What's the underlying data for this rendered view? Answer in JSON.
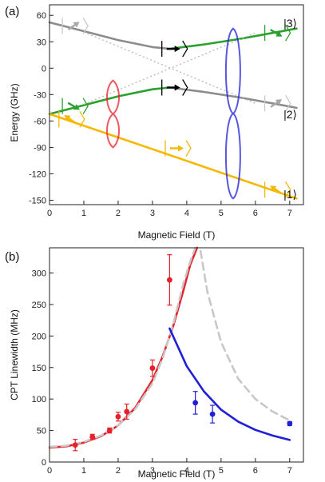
{
  "colors": {
    "red": "#e8202a",
    "green": "#2ca02c",
    "gray": "#8c8c8c",
    "lightgray": "#c8c8c8",
    "yellow": "#f5b800",
    "blue": "#1f1fd6",
    "black": "#000000"
  },
  "chart_data": [
    {
      "type": "line",
      "panel_label": "(a)",
      "xlabel": "Magnetic Field (T)",
      "ylabel": "Energy (GHz)",
      "xlim": [
        0,
        7.4
      ],
      "ylim": [
        -155,
        72
      ],
      "xticks": [
        "0",
        "1",
        "2",
        "3",
        "4",
        "5",
        "6",
        "7"
      ],
      "yticks": [
        "60",
        "30",
        "0",
        "-30",
        "-60",
        "-90",
        "-120",
        "-150"
      ],
      "state_labels": [
        "|3⟩",
        "|2⟩",
        "|1⟩"
      ],
      "series": [
        {
          "color": "gray",
          "x": [
            0,
            1,
            2,
            3,
            3.5
          ],
          "y": [
            52,
            42,
            32,
            24,
            22
          ]
        },
        {
          "color": "green",
          "x": [
            3.5,
            4.5,
            5.5,
            6.5,
            7.2
          ],
          "y": [
            22,
            27,
            33,
            40,
            45
          ]
        },
        {
          "color": "green",
          "x": [
            0,
            1,
            2,
            3,
            3.5
          ],
          "y": [
            -52,
            -42,
            -32,
            -24,
            -22
          ]
        },
        {
          "color": "gray",
          "x": [
            3.5,
            4.5,
            5.5,
            6.5,
            7.2
          ],
          "y": [
            -22,
            -27,
            -33,
            -40,
            -45
          ]
        },
        {
          "color": "yellow",
          "x": [
            0,
            7.2
          ],
          "y": [
            -52,
            -148
          ]
        }
      ]
    },
    {
      "type": "line",
      "panel_label": "(b)",
      "xlabel": "Magnetic Field (T)",
      "ylabel": "CPT Linewidth (MHz)",
      "xlim": [
        0,
        7.4
      ],
      "ylim": [
        0,
        340
      ],
      "xticks": [
        "0",
        "1",
        "2",
        "3",
        "4",
        "5",
        "6",
        "7"
      ],
      "yticks": [
        "0",
        "50",
        "100",
        "150",
        "200",
        "250",
        "300"
      ],
      "series": [
        {
          "color": "red",
          "style": "solid",
          "x": [
            0,
            0.5,
            1,
            1.5,
            2,
            2.5,
            3,
            3.3,
            3.6,
            3.9,
            4.1,
            4.3
          ],
          "y": [
            23,
            25,
            31,
            41,
            58,
            86,
            130,
            168,
            215,
            272,
            313,
            340
          ]
        },
        {
          "color": "lightgray",
          "style": "dashed",
          "x": [
            0,
            0.5,
            1,
            1.5,
            2,
            2.5,
            3,
            3.3,
            3.6,
            3.9,
            4.1,
            4.25
          ],
          "y": [
            24,
            26,
            32,
            42,
            58,
            84,
            125,
            165,
            218,
            283,
            318,
            340
          ]
        },
        {
          "color": "lightgray",
          "style": "dashed",
          "x": [
            4.4,
            4.6,
            5,
            5.5,
            6,
            6.5,
            7
          ],
          "y": [
            335,
            270,
            190,
            132,
            100,
            80,
            66
          ]
        },
        {
          "color": "blue",
          "style": "solid",
          "x": [
            3.5,
            4,
            4.5,
            5,
            5.5,
            6,
            6.5,
            7
          ],
          "y": [
            212,
            152,
            112,
            83,
            64,
            51,
            42,
            35
          ]
        }
      ],
      "points": [
        {
          "color": "red",
          "x": 0.75,
          "y": 27,
          "err": 9
        },
        {
          "color": "red",
          "x": 1.25,
          "y": 40,
          "err": 4
        },
        {
          "color": "red",
          "x": 1.75,
          "y": 50,
          "err": 4
        },
        {
          "color": "red",
          "x": 2,
          "y": 72,
          "err": 7
        },
        {
          "color": "red",
          "x": 2.25,
          "y": 80,
          "err": 12
        },
        {
          "color": "red",
          "x": 3,
          "y": 149,
          "err": 13
        },
        {
          "color": "red",
          "x": 3.5,
          "y": 289,
          "err": 40
        },
        {
          "color": "blue",
          "x": 4.25,
          "y": 94,
          "err": 18
        },
        {
          "color": "blue",
          "x": 4.75,
          "y": 76,
          "err": 14
        },
        {
          "color": "blue",
          "x": 7,
          "y": 61,
          "err": 3
        }
      ]
    }
  ]
}
